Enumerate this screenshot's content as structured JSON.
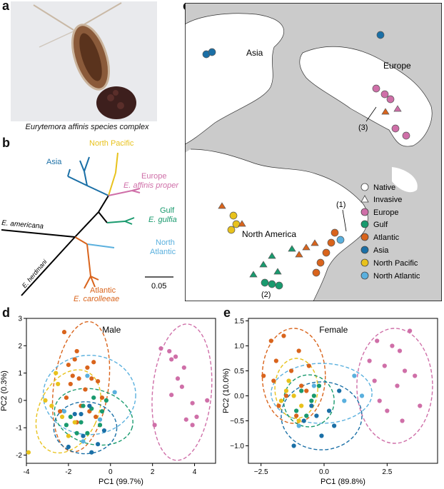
{
  "panels": {
    "a": {
      "letter": "a",
      "caption": "Eurytemora affinis species complex"
    },
    "b": {
      "letter": "b",
      "clades": [
        {
          "label": "North Pacific",
          "color": "#e8c21c"
        },
        {
          "label": "Asia",
          "color": "#1a6fa6"
        },
        {
          "label": "Europe",
          "label2": "E. affinis proper",
          "color": "#cf6fa8"
        },
        {
          "label": "Gulf",
          "label2": "E. gulfia",
          "color": "#199a6e"
        },
        {
          "label": "North",
          "label2": "Atlantic",
          "color": "#5ab0de"
        },
        {
          "label": "Atlantic",
          "label2": "E. carolleeae",
          "color": "#d9641c"
        }
      ],
      "outgroups": [
        "E. americana",
        "E. herdmani"
      ],
      "scale": "0.05"
    },
    "c": {
      "letter": "c",
      "regions": [
        "Asia",
        "Europe",
        "North America"
      ],
      "numbers": [
        "(1)",
        "(2)",
        "(3)"
      ],
      "legend_status": [
        {
          "label": "Native",
          "shape": "circle"
        },
        {
          "label": "Invasive",
          "shape": "triangle"
        }
      ],
      "legend_clades": [
        {
          "label": "Europe",
          "color": "#cf6fa8"
        },
        {
          "label": "Gulf",
          "color": "#199a6e"
        },
        {
          "label": "Atlantic",
          "color": "#d9641c"
        },
        {
          "label": "Asia",
          "color": "#1a6fa6"
        },
        {
          "label": "North Pacific",
          "color": "#e8c21c"
        },
        {
          "label": "North Atlantic",
          "color": "#5ab0de"
        }
      ]
    }
  },
  "chart_data": [
    {
      "panel": "d",
      "type": "scatter",
      "title": "Male",
      "xlabel": "PC1 (99.7%)",
      "ylabel": "PC2 (0.3%)",
      "xlim": [
        -4,
        5
      ],
      "ylim": [
        -2.3,
        3
      ],
      "xticks": [
        -4,
        -2,
        0,
        2,
        4
      ],
      "yticks": [
        -2,
        -1,
        0,
        1,
        2,
        3
      ],
      "series": [
        {
          "name": "Europe",
          "color": "#cf6fa8",
          "ellipse": {
            "cx": 3.4,
            "cy": 0.3,
            "rx": 1.4,
            "ry": 2.5,
            "angle": 5
          },
          "points": [
            [
              2.4,
              1.9
            ],
            [
              2.8,
              1.8
            ],
            [
              3.1,
              1.6
            ],
            [
              2.9,
              1.5
            ],
            [
              3.5,
              1.2
            ],
            [
              3.2,
              0.8
            ],
            [
              3.4,
              0.5
            ],
            [
              4.6,
              0
            ],
            [
              2.9,
              0.2
            ],
            [
              3.9,
              -0.1
            ],
            [
              3.6,
              -0.7
            ],
            [
              2.1,
              -0.9
            ],
            [
              4.1,
              -0.6
            ],
            [
              3.9,
              -0.9
            ]
          ]
        },
        {
          "name": "Atlantic",
          "color": "#d9641c",
          "ellipse": {
            "cx": -1.4,
            "cy": 0.5,
            "rx": 1.3,
            "ry": 2.4,
            "angle": 8
          },
          "points": [
            [
              -2.2,
              2.5
            ],
            [
              -1.7,
              1.5
            ],
            [
              -0.8,
              1.4
            ],
            [
              -1.6,
              1.8
            ],
            [
              -1.1,
              1.2
            ],
            [
              -2.0,
              1.3
            ],
            [
              -1.5,
              0.8
            ],
            [
              -0.6,
              0.7
            ],
            [
              -1.9,
              0.6
            ],
            [
              -1.2,
              0.4
            ],
            [
              -2.4,
              -0.4
            ],
            [
              -0.7,
              -0.6
            ],
            [
              -1.4,
              -0.2
            ],
            [
              -1.8,
              0.9
            ],
            [
              -0.4,
              0.1
            ],
            [
              -2.1,
              0.1
            ],
            [
              -1.0,
              -0.4
            ],
            [
              -1.6,
              -0.8
            ],
            [
              -0.9,
              0.8
            ]
          ]
        },
        {
          "name": "North Atlantic",
          "color": "#5ab0de",
          "ellipse": {
            "cx": -1.0,
            "cy": 0.2,
            "rx": 2.2,
            "ry": 1.45,
            "angle": 0
          },
          "points": [
            [
              -1.1,
              0.9
            ],
            [
              -0.5,
              -0.7
            ],
            [
              -1.3,
              -1.5
            ],
            [
              -2.2,
              -0.4
            ],
            [
              0.2,
              0.3
            ]
          ]
        },
        {
          "name": "North Pacific",
          "color": "#e8c21c",
          "ellipse": {
            "cx": -2.0,
            "cy": -0.4,
            "rx": 1.4,
            "ry": 1.6,
            "angle": 25
          },
          "points": [
            [
              -3.9,
              -1.9
            ],
            [
              -2.5,
              0.6
            ],
            [
              -2.8,
              -0.2
            ],
            [
              -3.1,
              0
            ],
            [
              -2.3,
              -0.6
            ],
            [
              -2.0,
              -1.3
            ],
            [
              -1.7,
              -0.8
            ],
            [
              -2.6,
              1.0
            ]
          ]
        },
        {
          "name": "Gulf",
          "color": "#199a6e",
          "ellipse": {
            "cx": -0.8,
            "cy": -0.6,
            "rx": 1.9,
            "ry": 1.0,
            "angle": 15
          },
          "points": [
            [
              -1.9,
              -0.6
            ],
            [
              -1.3,
              -0.2
            ],
            [
              -0.9,
              -0.3
            ],
            [
              -0.5,
              -0.9
            ],
            [
              -1.6,
              -1.2
            ],
            [
              -1.1,
              -1.2
            ],
            [
              -0.2,
              0
            ],
            [
              -0.8,
              0.1
            ],
            [
              -1.4,
              -0.8
            ],
            [
              -2.1,
              -0.9
            ],
            [
              -0.4,
              -0.4
            ]
          ]
        },
        {
          "name": "Asia",
          "color": "#1a6fa6",
          "ellipse": {
            "cx": -1.2,
            "cy": -1.0,
            "rx": 1.5,
            "ry": 0.95,
            "angle": 0
          },
          "points": [
            [
              -1.0,
              -0.2
            ],
            [
              -1.7,
              -0.5
            ],
            [
              -0.6,
              -1.6
            ],
            [
              -1.4,
              -0.5
            ],
            [
              -0.3,
              -1.1
            ],
            [
              -2.0,
              -1.7
            ],
            [
              -0.9,
              -1.9
            ],
            [
              -1.3,
              -1.3
            ]
          ]
        }
      ]
    },
    {
      "panel": "e",
      "type": "scatter",
      "title": "Female",
      "xlabel": "PC1 (89.8%)",
      "ylabel": "PC2 (10.0%)",
      "xlim": [
        -3,
        4.5
      ],
      "ylim": [
        -1.35,
        1.55
      ],
      "xticks": [
        -2.5,
        0,
        2.5
      ],
      "xticklabels": [
        "−2.5",
        "0.0",
        "2.5"
      ],
      "yticks": [
        -1.0,
        -0.5,
        0,
        0.5,
        1.0,
        1.5
      ],
      "yticklabels": [
        "−1.0",
        "−0.5",
        "0.0",
        "0.5",
        "1.0",
        "1.5"
      ],
      "series": [
        {
          "name": "Europe",
          "color": "#cf6fa8",
          "ellipse": {
            "cx": 2.8,
            "cy": 0.2,
            "rx": 1.5,
            "ry": 1.15,
            "angle": 0
          },
          "points": [
            [
              2.1,
              1.1
            ],
            [
              3.4,
              1.3
            ],
            [
              2.7,
              1.0
            ],
            [
              3.0,
              0.9
            ],
            [
              1.8,
              0.7
            ],
            [
              2.4,
              0.6
            ],
            [
              3.2,
              0.5
            ],
            [
              2.0,
              0.3
            ],
            [
              2.9,
              0.2
            ],
            [
              3.6,
              0.4
            ],
            [
              2.5,
              -0.3
            ],
            [
              3.8,
              -0.2
            ],
            [
              2.2,
              -0.1
            ],
            [
              3.1,
              -0.5
            ]
          ]
        },
        {
          "name": "Atlantic",
          "color": "#d9641c",
          "ellipse": {
            "cx": -1.2,
            "cy": 0.4,
            "rx": 1.25,
            "ry": 0.95,
            "angle": 0
          },
          "points": [
            [
              -2.1,
              1.1
            ],
            [
              -1.6,
              1.2
            ],
            [
              -1.0,
              0.9
            ],
            [
              -1.9,
              0.7
            ],
            [
              -1.3,
              0.5
            ],
            [
              -0.6,
              0.6
            ],
            [
              -2.0,
              0.3
            ],
            [
              -1.5,
              0
            ],
            [
              -0.9,
              0.2
            ],
            [
              -2.4,
              0.4
            ],
            [
              -1.8,
              -0.2
            ],
            [
              -1.1,
              -0.4
            ],
            [
              -0.7,
              0.1
            ]
          ]
        },
        {
          "name": "North Atlantic",
          "color": "#5ab0de",
          "ellipse": {
            "cx": -0.1,
            "cy": 0.05,
            "rx": 2.0,
            "ry": 0.6,
            "angle": 0
          },
          "points": [
            [
              1.2,
              0.4
            ],
            [
              -0.4,
              0.2
            ],
            [
              -1.0,
              -0.6
            ],
            [
              0.8,
              -0.1
            ],
            [
              1.5,
              0
            ]
          ]
        },
        {
          "name": "North Pacific",
          "color": "#e8c21c",
          "ellipse": {
            "cx": -1.1,
            "cy": 0.15,
            "rx": 0.85,
            "ry": 0.6,
            "angle": 0
          },
          "points": [
            [
              -1.5,
              0.1
            ],
            [
              -1.2,
              0
            ],
            [
              -0.9,
              -0.2
            ],
            [
              -1.7,
              -0.1
            ],
            [
              -1.4,
              0.3
            ],
            [
              -1.0,
              -0.5
            ]
          ]
        },
        {
          "name": "Gulf",
          "color": "#199a6e",
          "ellipse": {
            "cx": -0.6,
            "cy": -0.1,
            "rx": 1.0,
            "ry": 0.52,
            "angle": 0
          },
          "points": [
            [
              -0.9,
              0.1
            ],
            [
              -0.5,
              -0.1
            ],
            [
              -0.2,
              0.2
            ],
            [
              -1.1,
              -0.3
            ],
            [
              -0.7,
              -0.4
            ],
            [
              -0.4,
              0
            ]
          ]
        },
        {
          "name": "Asia",
          "color": "#1a6fa6",
          "ellipse": {
            "cx": -0.1,
            "cy": -0.4,
            "rx": 1.6,
            "ry": 0.68,
            "angle": 0
          },
          "points": [
            [
              -0.8,
              -0.5
            ],
            [
              -0.3,
              -0.4
            ],
            [
              0.2,
              -0.3
            ],
            [
              0.4,
              -0.6
            ],
            [
              -0.1,
              -0.8
            ],
            [
              -1.2,
              -1.0
            ],
            [
              0.6,
              0.1
            ],
            [
              -0.5,
              -0.2
            ]
          ]
        }
      ]
    }
  ]
}
